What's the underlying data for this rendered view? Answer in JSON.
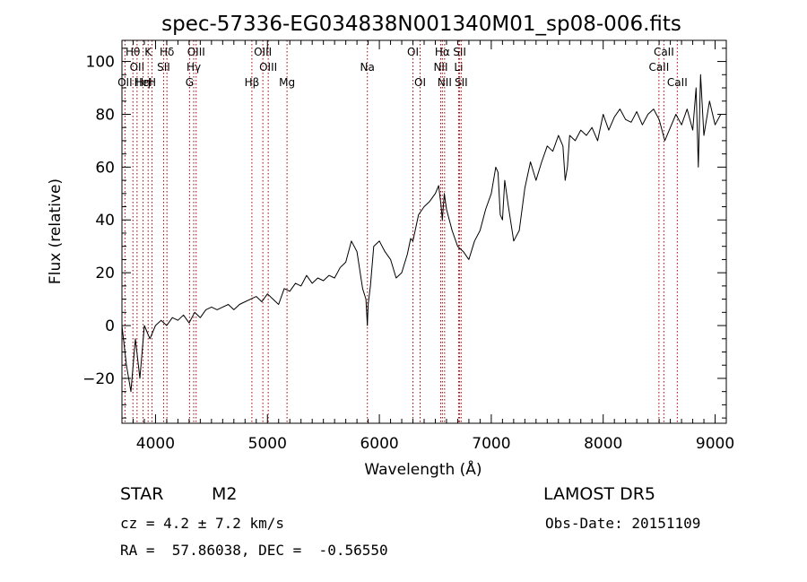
{
  "chart_data": {
    "type": "line",
    "title": "spec-57336-EG034838N001340M01_sp08-006.fits",
    "xlabel": "Wavelength (Å)",
    "ylabel": "Flux (relative)",
    "xlim": [
      3700,
      9100
    ],
    "ylim": [
      -37,
      108
    ],
    "x_ticks": [
      4000,
      5000,
      6000,
      7000,
      8000,
      9000
    ],
    "y_ticks": [
      -20,
      0,
      20,
      40,
      60,
      80,
      100
    ],
    "grid": false,
    "line_color": "#000000",
    "line_marker_color": "#a00000",
    "series": [
      {
        "x": [
          3700,
          3740,
          3780,
          3820,
          3860,
          3900,
          3950,
          4000,
          4050,
          4100,
          4150,
          4200,
          4250,
          4300,
          4350,
          4400,
          4450,
          4500,
          4550,
          4600,
          4650,
          4700,
          4750,
          4800,
          4850,
          4900,
          4950,
          5000,
          5050,
          5100,
          5150,
          5200,
          5250,
          5300,
          5350,
          5400,
          5450,
          5500,
          5550,
          5600,
          5650,
          5700,
          5750,
          5800,
          5850,
          5880,
          5893,
          5900,
          5920,
          5950,
          6000,
          6050,
          6100,
          6150,
          6200,
          6250,
          6280,
          6300,
          6350,
          6400,
          6450,
          6500,
          6530,
          6550,
          6563,
          6580,
          6600,
          6650,
          6700,
          6750,
          6800,
          6850,
          6900,
          6950,
          7000,
          7040,
          7060,
          7080,
          7100,
          7120,
          7150,
          7200,
          7250,
          7300,
          7350,
          7400,
          7450,
          7500,
          7550,
          7600,
          7640,
          7660,
          7680,
          7700,
          7750,
          7800,
          7850,
          7900,
          7950,
          8000,
          8050,
          8100,
          8150,
          8200,
          8250,
          8300,
          8350,
          8400,
          8450,
          8500,
          8550,
          8600,
          8650,
          8700,
          8750,
          8800,
          8830,
          8850,
          8870,
          8900,
          8950,
          9000,
          9050
        ],
        "y": [
          0,
          -15,
          -25,
          -5,
          -20,
          0,
          -5,
          0,
          2,
          0,
          3,
          2,
          4,
          1,
          5,
          3,
          6,
          7,
          6,
          7,
          8,
          6,
          8,
          9,
          10,
          11,
          9,
          12,
          10,
          8,
          14,
          13,
          16,
          15,
          19,
          16,
          18,
          17,
          19,
          18,
          22,
          24,
          32,
          28,
          14,
          10,
          0,
          8,
          15,
          30,
          32,
          28,
          25,
          18,
          20,
          27,
          33,
          32,
          42,
          45,
          47,
          50,
          53,
          46,
          40,
          50,
          44,
          36,
          30,
          28,
          25,
          32,
          36,
          44,
          50,
          60,
          58,
          42,
          40,
          55,
          46,
          32,
          36,
          52,
          62,
          55,
          62,
          68,
          66,
          72,
          68,
          55,
          60,
          72,
          70,
          74,
          72,
          75,
          70,
          80,
          74,
          79,
          82,
          78,
          77,
          81,
          76,
          80,
          82,
          78,
          70,
          75,
          80,
          76,
          82,
          74,
          90,
          60,
          95,
          72,
          85,
          76,
          80
        ]
      }
    ],
    "line_markers": [
      {
        "x": 3727,
        "labels": [
          "OII"
        ],
        "level": 3
      },
      {
        "x": 3798,
        "labels": [
          "Hθ"
        ],
        "level": 1
      },
      {
        "x": 3835,
        "labels": [
          "OII"
        ],
        "level": 2
      },
      {
        "x": 3889,
        "labels": [
          "Hη",
          "HeI"
        ],
        "level": 3
      },
      {
        "x": 3934,
        "labels": [
          "K"
        ],
        "level": 1
      },
      {
        "x": 3969,
        "labels": [
          "H"
        ],
        "level": 3
      },
      {
        "x": 4072,
        "labels": [
          "SII"
        ],
        "level": 2
      },
      {
        "x": 4102,
        "labels": [
          "Hδ"
        ],
        "level": 1
      },
      {
        "x": 4304,
        "labels": [
          "G"
        ],
        "level": 3
      },
      {
        "x": 4341,
        "labels": [
          "Hγ"
        ],
        "level": 2
      },
      {
        "x": 4363,
        "labels": [
          "OIII"
        ],
        "level": 1
      },
      {
        "x": 4861,
        "labels": [
          "Hβ"
        ],
        "level": 3
      },
      {
        "x": 4959,
        "labels": [
          "OIII"
        ],
        "level": 1
      },
      {
        "x": 5007,
        "labels": [
          "OIII"
        ],
        "level": 2
      },
      {
        "x": 5175,
        "labels": [
          "Mg"
        ],
        "level": 3
      },
      {
        "x": 5893,
        "labels": [
          "Na"
        ],
        "level": 2
      },
      {
        "x": 6300,
        "labels": [
          "OI"
        ],
        "level": 1
      },
      {
        "x": 6364,
        "labels": [
          "OI"
        ],
        "level": 3
      },
      {
        "x": 6548,
        "labels": [
          "NII"
        ],
        "level": 2
      },
      {
        "x": 6563,
        "labels": [
          "Hα"
        ],
        "level": 1
      },
      {
        "x": 6583,
        "labels": [
          "NII"
        ],
        "level": 3
      },
      {
        "x": 6708,
        "labels": [
          "Li"
        ],
        "level": 2
      },
      {
        "x": 6717,
        "labels": [
          "SII"
        ],
        "level": 1
      },
      {
        "x": 6731,
        "labels": [
          "SII"
        ],
        "level": 3
      },
      {
        "x": 8498,
        "labels": [
          "CaII"
        ],
        "level": 2
      },
      {
        "x": 8542,
        "labels": [
          "CaII"
        ],
        "level": 1
      },
      {
        "x": 8662,
        "labels": [
          "CaII"
        ],
        "level": 3
      }
    ]
  },
  "info": {
    "object_class": "STAR",
    "subclass": "M2",
    "survey": "LAMOST DR5",
    "cz_line": "cz = 4.2 ± 7.2 km/s",
    "obs_date": "Obs-Date: 20151109",
    "coords": "RA =  57.86038, DEC =  -0.56550"
  }
}
